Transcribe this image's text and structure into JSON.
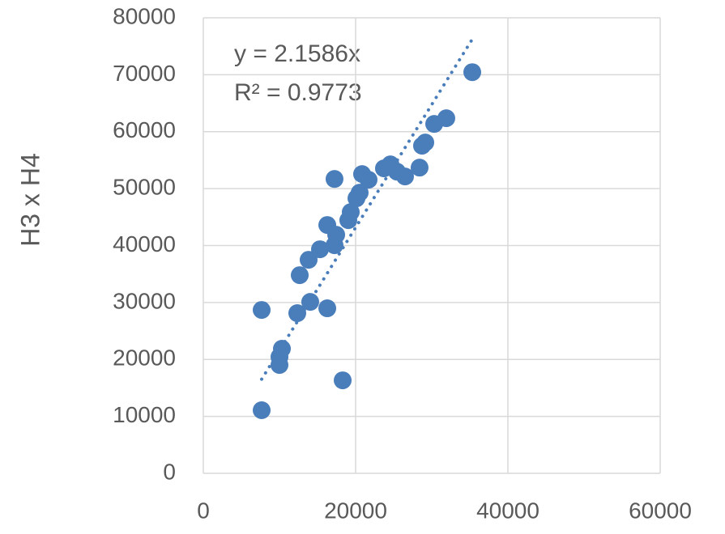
{
  "chart_data": {
    "type": "scatter",
    "y_label": "H3 x H4",
    "x": [
      7660,
      7660,
      10000,
      10000,
      10320,
      12340,
      12660,
      13830,
      14040,
      15320,
      16280,
      16280,
      17230,
      17230,
      17450,
      18300,
      19040,
      19360,
      20110,
      20530,
      20850,
      21700,
      23720,
      24570,
      25430,
      26490,
      28400,
      28720,
      29150,
      30320,
      31910,
      35320
    ],
    "values": [
      11080,
      28690,
      19030,
      20450,
      21880,
      28130,
      34800,
      37500,
      30110,
      39350,
      28980,
      43610,
      51700,
      40060,
      41900,
      16330,
      44460,
      45880,
      48300,
      49290,
      52560,
      51560,
      53550,
      54260,
      52980,
      52130,
      53690,
      57530,
      58100,
      61360,
      62360,
      70450
    ],
    "color": "#4a7ebb",
    "xlim": [
      0,
      60000
    ],
    "xticks": [
      0,
      20000,
      40000,
      60000
    ],
    "ylim": [
      0,
      80000
    ],
    "yticks": [
      0,
      10000,
      20000,
      30000,
      40000,
      50000,
      60000,
      70000,
      80000
    ],
    "grid": true,
    "trendline": {
      "slope": 2.1586,
      "equation": "y = 2.1586x",
      "r2": "R² = 0.9773"
    }
  }
}
